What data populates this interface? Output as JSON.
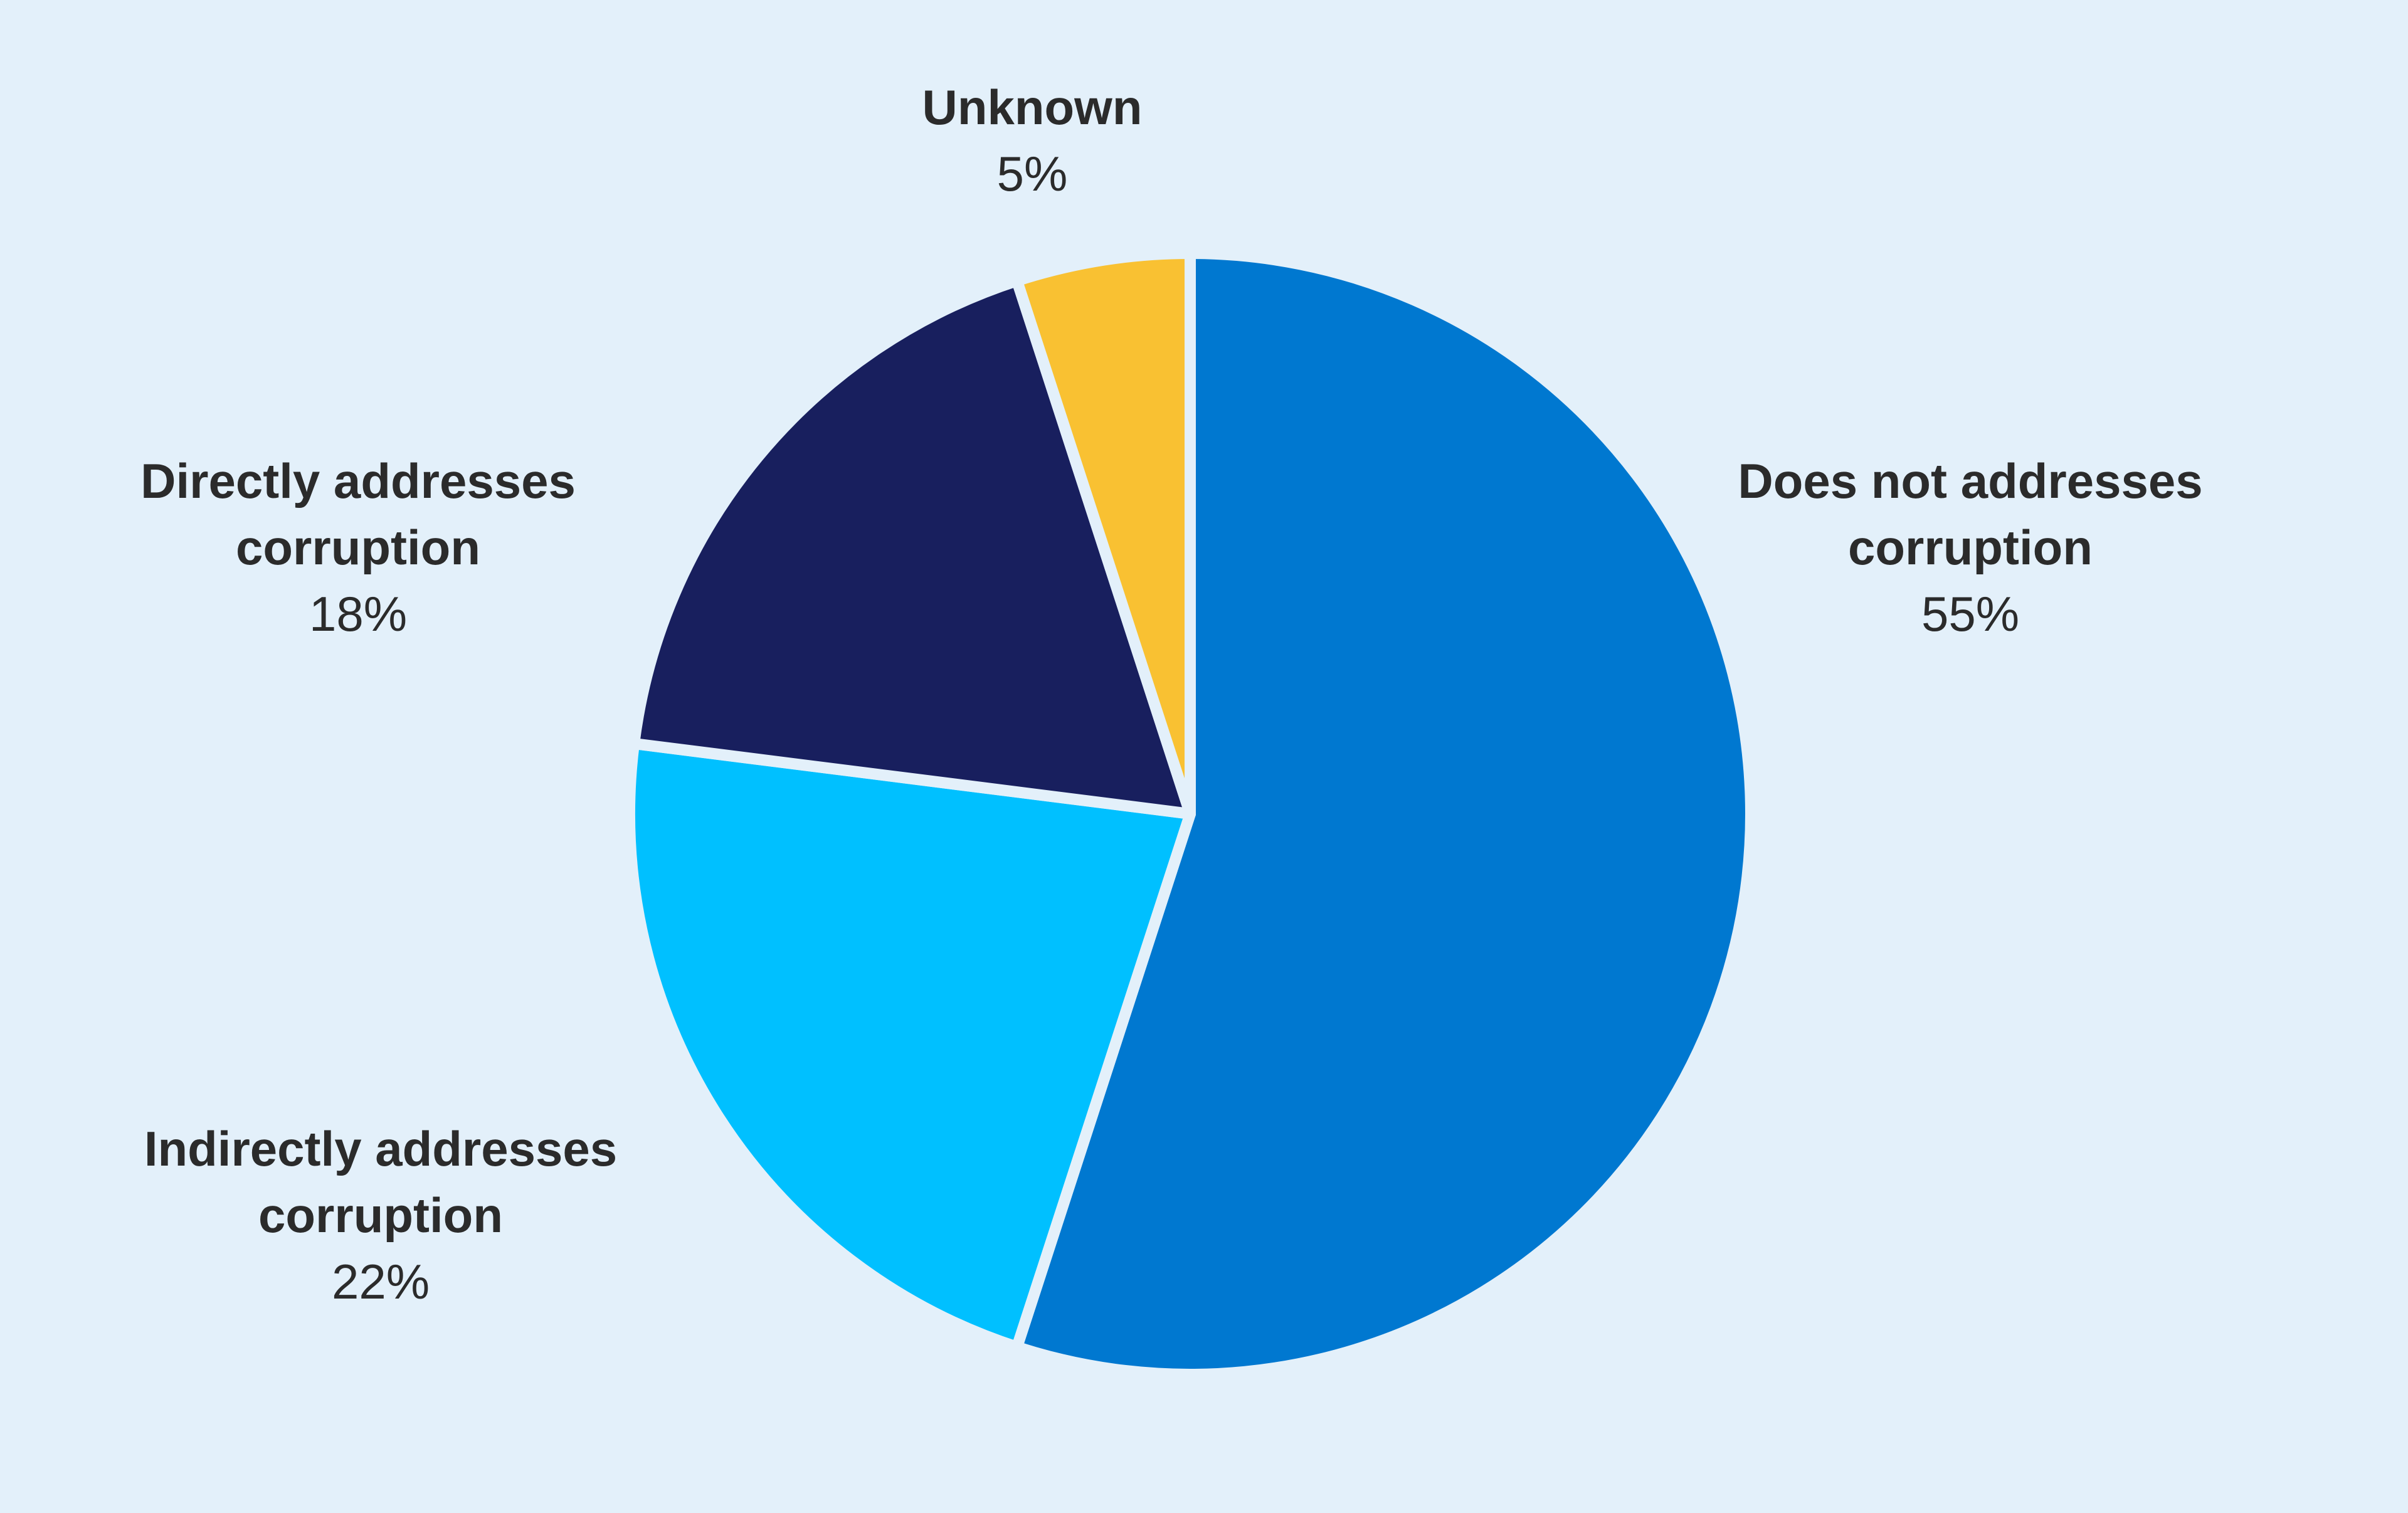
{
  "chart_data": {
    "type": "pie",
    "categories": [
      "Does not addresses corruption",
      "Indirectly addresses corruption",
      "Directly addresses corruption",
      "Unknown"
    ],
    "values": [
      55,
      22,
      18,
      5
    ],
    "value_labels": [
      "55%",
      "22%",
      "18%",
      "5%"
    ],
    "colors": [
      "#0078d0",
      "#00c0ff",
      "#181f5e",
      "#f9c132"
    ]
  }
}
